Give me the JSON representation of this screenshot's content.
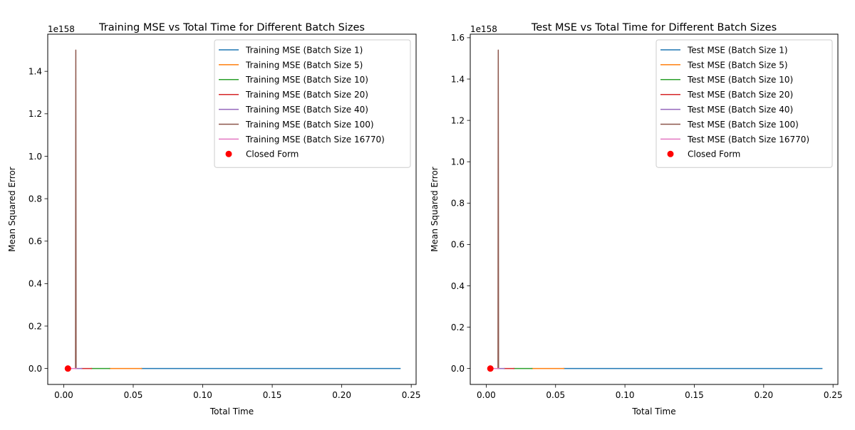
{
  "chart_data": [
    {
      "type": "line",
      "title": "Training MSE vs Total Time for Different Batch Sizes",
      "xlabel": "Total Time",
      "ylabel": "Mean Squared Error",
      "y_offset_label": "1e158",
      "xlim": [
        -0.0115,
        0.2535
      ],
      "ylim": [
        -0.075,
        1.575
      ],
      "xticks": [
        0.0,
        0.05,
        0.1,
        0.15,
        0.2,
        0.25
      ],
      "xtick_labels": [
        "0.00",
        "0.05",
        "0.10",
        "0.15",
        "0.20",
        "0.25"
      ],
      "yticks": [
        0.0,
        0.2,
        0.4,
        0.6,
        0.8,
        1.0,
        1.2,
        1.4
      ],
      "ytick_labels": [
        "0.0",
        "0.2",
        "0.4",
        "0.6",
        "0.8",
        "1.0",
        "1.2",
        "1.4"
      ],
      "legend_position": "top-right",
      "series": [
        {
          "name": "Training MSE (Batch Size 1)",
          "color": "#1f77b4",
          "x": [
            0.056,
            0.242
          ],
          "y": [
            0,
            0
          ]
        },
        {
          "name": "Training MSE (Batch Size 5)",
          "color": "#ff7f0e",
          "x": [
            0.033,
            0.056
          ],
          "y": [
            0,
            0
          ]
        },
        {
          "name": "Training MSE (Batch Size 10)",
          "color": "#2ca02c",
          "x": [
            0.02,
            0.033
          ],
          "y": [
            0,
            0
          ]
        },
        {
          "name": "Training MSE (Batch Size 20)",
          "color": "#d62728",
          "x": [
            0.013,
            0.02
          ],
          "y": [
            0,
            0
          ]
        },
        {
          "name": "Training MSE (Batch Size 40)",
          "color": "#9467bd",
          "x": [
            0.009,
            0.013
          ],
          "y": [
            0,
            0
          ]
        },
        {
          "name": "Training MSE (Batch Size 100)",
          "color": "#8c564b",
          "x": [
            0.0085,
            0.0087,
            0.0089
          ],
          "y": [
            0,
            1.5,
            0
          ]
        },
        {
          "name": "Training MSE (Batch Size 16770)",
          "color": "#e377c2",
          "x": [
            0.003,
            0.009
          ],
          "y": [
            0,
            0
          ]
        }
      ],
      "points": {
        "name": "Closed Form",
        "color": "#ff0000",
        "x": [
          0.003
        ],
        "y": [
          0
        ]
      }
    },
    {
      "type": "line",
      "title": "Test MSE vs Total Time for Different Batch Sizes",
      "xlabel": "Total Time",
      "ylabel": "Mean Squared Error",
      "y_offset_label": "1e158",
      "xlim": [
        -0.0115,
        0.2535
      ],
      "ylim": [
        -0.077,
        1.617
      ],
      "xticks": [
        0.0,
        0.05,
        0.1,
        0.15,
        0.2,
        0.25
      ],
      "xtick_labels": [
        "0.00",
        "0.05",
        "0.10",
        "0.15",
        "0.20",
        "0.25"
      ],
      "yticks": [
        0.0,
        0.2,
        0.4,
        0.6,
        0.8,
        1.0,
        1.2,
        1.4,
        1.6
      ],
      "ytick_labels": [
        "0.0",
        "0.2",
        "0.4",
        "0.6",
        "0.8",
        "1.0",
        "1.2",
        "1.4",
        "1.6"
      ],
      "legend_position": "top-right",
      "series": [
        {
          "name": "Test MSE (Batch Size 1)",
          "color": "#1f77b4",
          "x": [
            0.056,
            0.242
          ],
          "y": [
            0,
            0
          ]
        },
        {
          "name": "Test MSE (Batch Size 5)",
          "color": "#ff7f0e",
          "x": [
            0.033,
            0.056
          ],
          "y": [
            0,
            0
          ]
        },
        {
          "name": "Test MSE (Batch Size 10)",
          "color": "#2ca02c",
          "x": [
            0.02,
            0.033
          ],
          "y": [
            0,
            0
          ]
        },
        {
          "name": "Test MSE (Batch Size 20)",
          "color": "#d62728",
          "x": [
            0.013,
            0.02
          ],
          "y": [
            0,
            0
          ]
        },
        {
          "name": "Test MSE (Batch Size 40)",
          "color": "#9467bd",
          "x": [
            0.009,
            0.013
          ],
          "y": [
            0,
            0
          ]
        },
        {
          "name": "Test MSE (Batch Size 100)",
          "color": "#8c564b",
          "x": [
            0.0085,
            0.0087,
            0.0089
          ],
          "y": [
            0,
            1.54,
            0
          ]
        },
        {
          "name": "Test MSE (Batch Size 16770)",
          "color": "#e377c2",
          "x": [
            0.003,
            0.009
          ],
          "y": [
            0,
            0
          ]
        }
      ],
      "points": {
        "name": "Closed Form",
        "color": "#ff0000",
        "x": [
          0.003
        ],
        "y": [
          0
        ]
      }
    }
  ]
}
